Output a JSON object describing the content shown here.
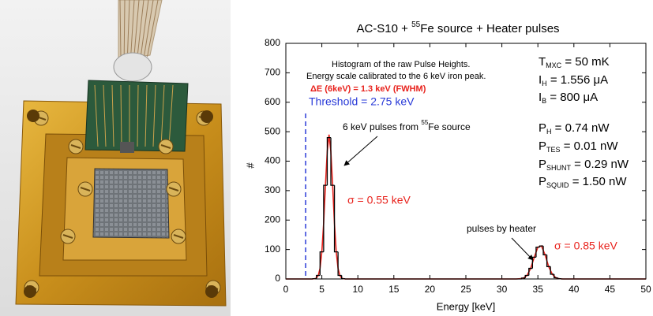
{
  "chart_data": {
    "type": "histogram",
    "title": [
      "AC-S10 + ",
      "55",
      "Fe source + Heater pulses"
    ],
    "x_label": "Energy [keV]",
    "y_label": "#",
    "bins": [
      0,
      3.75,
      4.25,
      4.75,
      5.25,
      5.75,
      6.25,
      6.75,
      7.25,
      7.75,
      8.25,
      32.75,
      33.25,
      33.75,
      34.25,
      34.75,
      35.25,
      35.75,
      36.25,
      36.75,
      37.25,
      37.75,
      38.25,
      50
    ],
    "values": [
      0,
      1,
      12,
      92,
      318,
      480,
      318,
      92,
      12,
      1,
      0,
      3,
      12,
      36,
      74,
      108,
      112,
      82,
      42,
      16,
      4,
      1,
      0
    ],
    "color": "#000000",
    "fit": {
      "x": [
        0,
        3.5,
        3.75,
        4,
        4.25,
        4.5,
        4.75,
        5,
        5.25,
        5.5,
        5.75,
        6,
        6.25,
        6.5,
        6.75,
        7,
        7.25,
        7.5,
        7.75,
        8,
        8.25,
        8.5,
        31.5,
        32,
        32.5,
        33,
        33.5,
        34,
        34.5,
        35,
        35.5,
        36,
        36.5,
        37,
        37.5,
        38,
        38.5,
        39,
        50
      ],
      "values": [
        0,
        0,
        0,
        1,
        3,
        12,
        36,
        92,
        189,
        318,
        433,
        490,
        433,
        318,
        189,
        92,
        36,
        12,
        3,
        1,
        0,
        0,
        0,
        0,
        1,
        3,
        12,
        36,
        74,
        108,
        112,
        82,
        42,
        16,
        4,
        1,
        0,
        0,
        0
      ],
      "color": "#e8221c"
    },
    "threshold": {
      "x": 2.75,
      "color": "#2a3bd8"
    },
    "xlim": [
      0,
      50
    ],
    "xticks": [
      0,
      5,
      10,
      15,
      20,
      25,
      30,
      35,
      40,
      45,
      50
    ],
    "ylim": [
      0,
      800
    ],
    "yticks": [
      0,
      100,
      200,
      300,
      400,
      500,
      600,
      700,
      800
    ],
    "notes": [
      "Histogram of the raw Pulse Heights.",
      "Energy scale calibrated to the 6 keV iron peak.",
      "ΔE (6keV) = 1.3 keV (FWHM)",
      "Threshold = 2.75 keV"
    ],
    "params": [
      [
        "T",
        "MXC",
        " = 50 mK"
      ],
      [
        "I",
        "H",
        " = 1.556 μA"
      ],
      [
        "I",
        "B",
        " = 800 μA"
      ],
      [
        "P",
        "H",
        " = 0.74 nW"
      ],
      [
        "P",
        "TES",
        " = 0.01 nW"
      ],
      [
        "P",
        "SHUNT",
        " = 0.29 nW"
      ],
      [
        "P",
        "SQUID",
        " = 1.50 nW"
      ]
    ],
    "peak_label": [
      "6 keV pulses from ",
      "55",
      "Fe source"
    ],
    "heater_label": "pulses by heater",
    "sigma_labels": [
      "σ = 0.55 keV",
      "σ = 0.85 keV"
    ]
  }
}
